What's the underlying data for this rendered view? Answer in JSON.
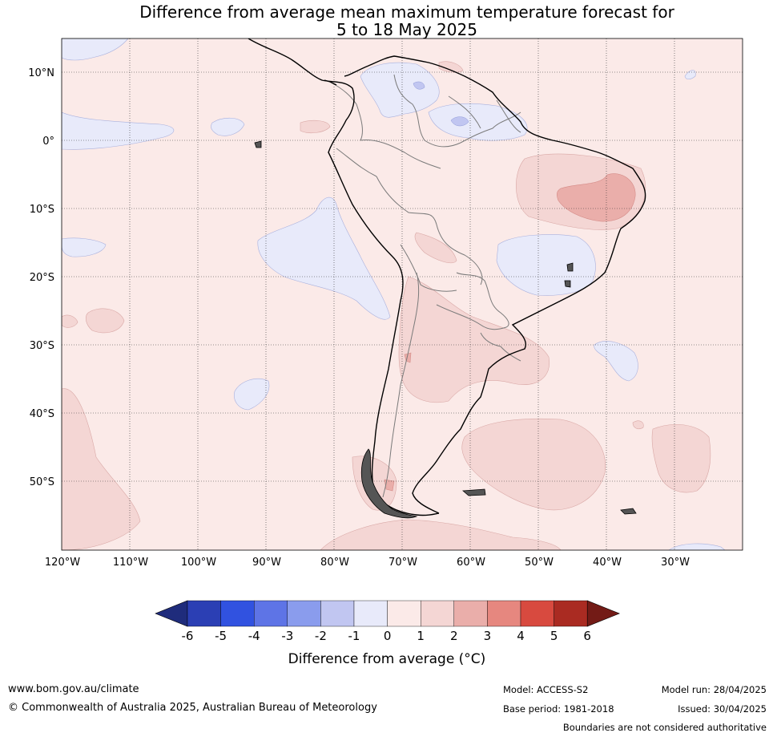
{
  "title": {
    "line1": "Difference from average mean maximum temperature forecast for",
    "line2": "5 to 18 May 2025"
  },
  "map": {
    "lat_labels": [
      "10°N",
      "0°",
      "10°S",
      "20°S",
      "30°S",
      "40°S",
      "50°S"
    ],
    "lon_labels": [
      "120°W",
      "110°W",
      "100°W",
      "90°W",
      "80°W",
      "70°W",
      "60°W",
      "50°W",
      "40°W",
      "30°W"
    ],
    "fill_colors": {
      "background": "#fbeae8",
      "pos_1_2": "#f4d6d4",
      "pos_2_3": "#eaaeaa",
      "neg_0_1": "#e8eafa",
      "neg_1_2": "#c1c6f1"
    }
  },
  "colorbar": {
    "ticks": [
      "-6",
      "-5",
      "-4",
      "-3",
      "-2",
      "-1",
      "0",
      "1",
      "2",
      "3",
      "4",
      "5",
      "6"
    ],
    "colors": [
      "#1f2c7c",
      "#2b3fb4",
      "#3152e0",
      "#5e74e6",
      "#8a9ced",
      "#c1c6f1",
      "#e8eafa",
      "#fbeae8",
      "#f4d6d4",
      "#eaaeaa",
      "#e6877f",
      "#d84a3f",
      "#aa2b22",
      "#731b16"
    ],
    "label": "Difference from average (°C)"
  },
  "footer": {
    "website": "www.bom.gov.au/climate",
    "copyright": "© Commonwealth of Australia 2025, Australian Bureau of Meteorology",
    "model": "Model: ACCESS-S2",
    "base_period": "Base period: 1981-2018",
    "model_run": "Model run: 28/04/2025",
    "issued": "Issued: 30/04/2025",
    "disclaimer": "Boundaries are not considered authoritative"
  }
}
